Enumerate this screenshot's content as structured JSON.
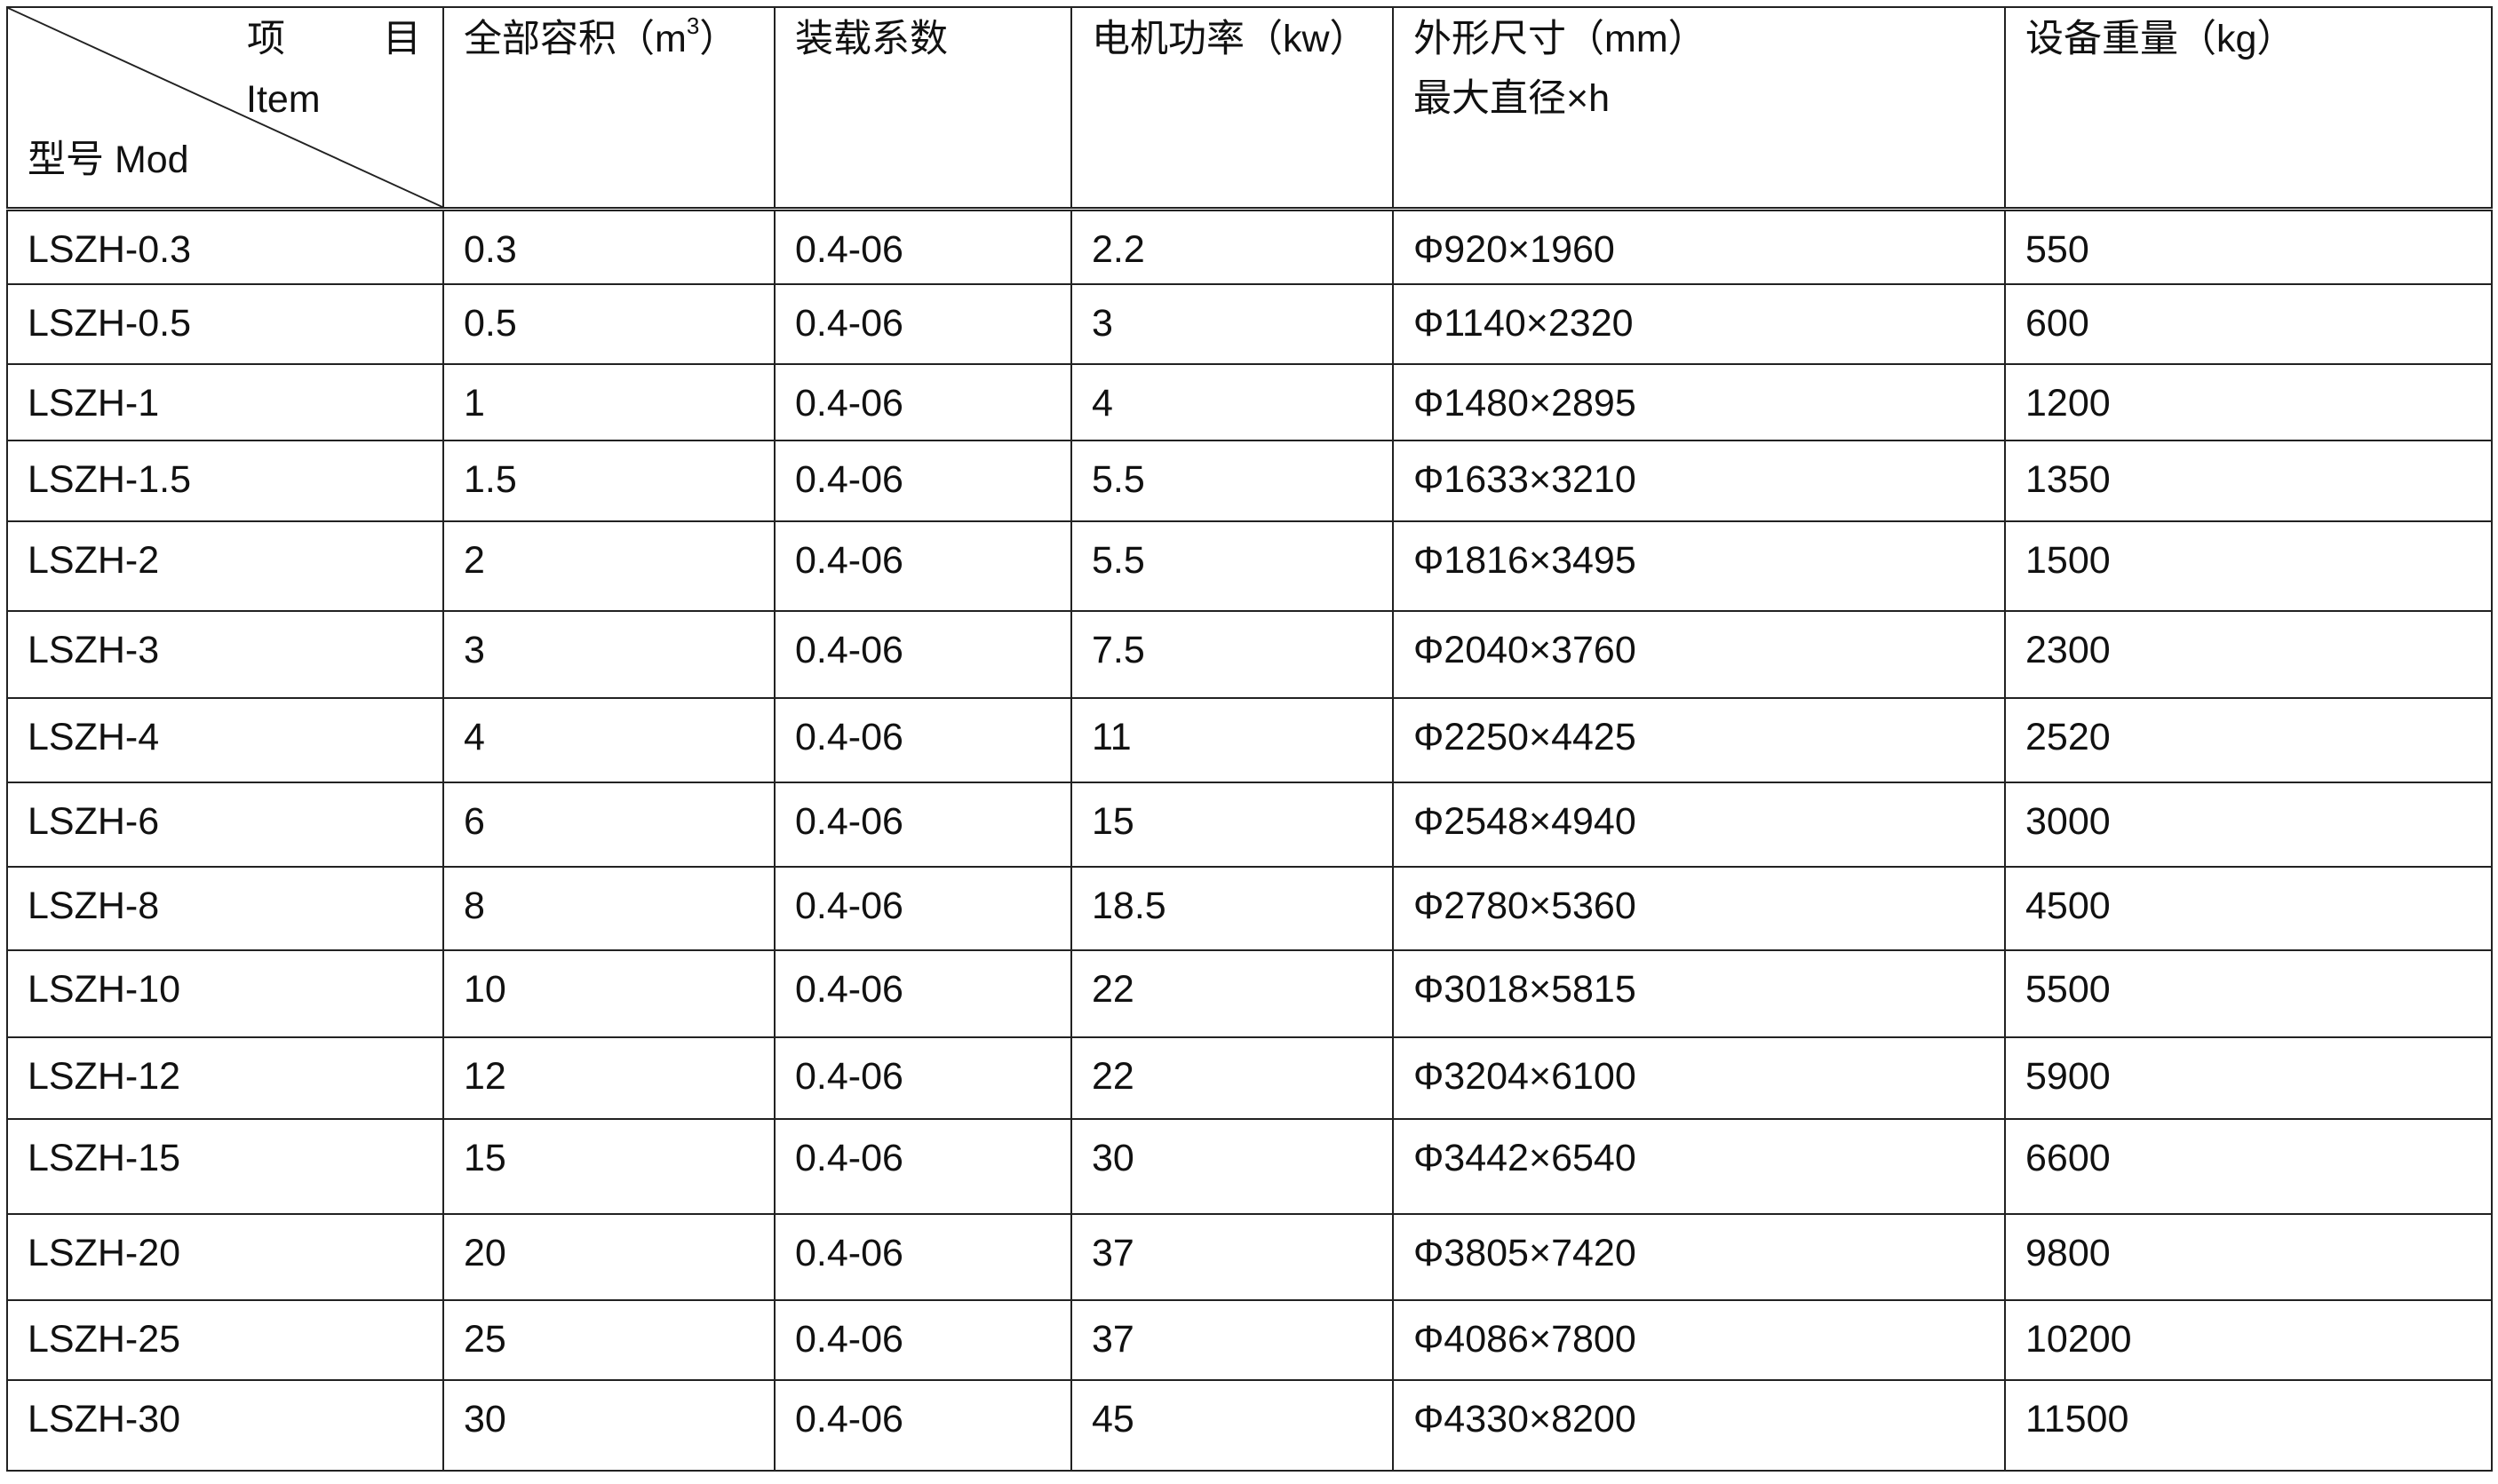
{
  "header": {
    "corner": {
      "item_zh_1": "项",
      "item_zh_2": "目",
      "item_en": "Item",
      "model": "型号 Mod"
    },
    "columns": [
      {
        "label": "全部容积（m",
        "sup": "3",
        "suffix": "）"
      },
      {
        "label": "装载系数"
      },
      {
        "label": "电机功率（kw）"
      },
      {
        "label": "外形尺寸（mm）",
        "line2": "最大直径×h"
      },
      {
        "label": "设备重量（kg）"
      }
    ]
  },
  "rows": [
    [
      "LSZH-0.3",
      "0.3",
      "0.4-06",
      "2.2",
      "Φ920×1960",
      "550"
    ],
    [
      "LSZH-0.5",
      "0.5",
      "0.4-06",
      "3",
      "Φ1140×2320",
      "600"
    ],
    [
      "LSZH-1",
      "1",
      "0.4-06",
      "4",
      "Φ1480×2895",
      "1200"
    ],
    [
      "LSZH-1.5",
      "1.5",
      "0.4-06",
      "5.5",
      "Φ1633×3210",
      "1350"
    ],
    [
      "LSZH-2",
      "2",
      "0.4-06",
      "5.5",
      "Φ1816×3495",
      "1500"
    ],
    [
      "LSZH-3",
      "3",
      "0.4-06",
      "7.5",
      "Φ2040×3760",
      "2300"
    ],
    [
      "LSZH-4",
      "4",
      "0.4-06",
      "11",
      "Φ2250×4425",
      "2520"
    ],
    [
      "LSZH-6",
      "6",
      "0.4-06",
      "15",
      "Φ2548×4940",
      "3000"
    ],
    [
      "LSZH-8",
      "8",
      "0.4-06",
      "18.5",
      "Φ2780×5360",
      "4500"
    ],
    [
      "LSZH-10",
      "10",
      "0.4-06",
      "22",
      "Φ3018×5815",
      "5500"
    ],
    [
      "LSZH-12",
      "12",
      "0.4-06",
      "22",
      "Φ3204×6100",
      "5900"
    ],
    [
      "LSZH-15",
      "15",
      "0.4-06",
      "30",
      "Φ3442×6540",
      "6600"
    ],
    [
      "LSZH-20",
      "20",
      "0.4-06",
      "37",
      "Φ3805×7420",
      "9800"
    ],
    [
      "LSZH-25",
      "25",
      "0.4-06",
      "37",
      "Φ4086×7800",
      "10200"
    ],
    [
      "LSZH-30",
      "30",
      "0.4-06",
      "45",
      "Φ4330×8200",
      "11500"
    ]
  ]
}
